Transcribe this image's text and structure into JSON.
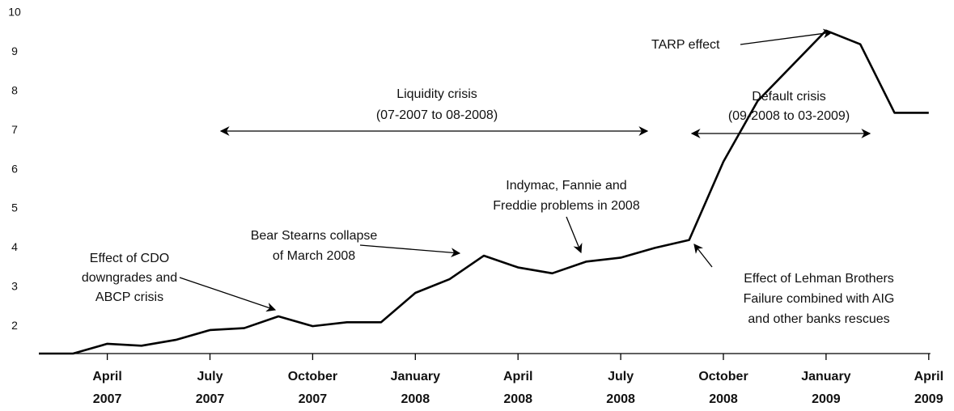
{
  "chart_data": {
    "type": "line",
    "x": [
      "2007-02",
      "2007-03",
      "2007-04",
      "2007-05",
      "2007-06",
      "2007-07",
      "2007-08",
      "2007-09",
      "2007-10",
      "2007-11",
      "2007-12",
      "2008-01",
      "2008-02",
      "2008-03",
      "2008-04",
      "2008-05",
      "2008-06",
      "2008-07",
      "2008-08",
      "2008-09",
      "2008-10",
      "2008-11",
      "2008-12",
      "2009-01",
      "2009-02",
      "2009-03",
      "2009-04"
    ],
    "values": [
      1.3,
      1.3,
      1.55,
      1.5,
      1.65,
      1.9,
      1.95,
      2.25,
      2.0,
      2.1,
      2.1,
      2.85,
      3.2,
      3.8,
      3.5,
      3.35,
      3.65,
      3.75,
      4.0,
      4.2,
      6.2,
      7.75,
      8.65,
      9.55,
      9.2,
      7.45,
      7.45
    ],
    "color": "#000000",
    "ylim": [
      1.3,
      10
    ],
    "yticks": [
      2,
      3,
      4,
      5,
      6,
      7,
      8,
      9,
      10
    ],
    "xticks": [
      {
        "value": "2007-04",
        "label": [
          "April",
          "2007"
        ]
      },
      {
        "value": "2007-07",
        "label": [
          "July",
          "2007"
        ]
      },
      {
        "value": "2007-10",
        "label": [
          "October",
          "2007"
        ]
      },
      {
        "value": "2008-01",
        "label": [
          "January",
          "2008"
        ]
      },
      {
        "value": "2008-04",
        "label": [
          "April",
          "2008"
        ]
      },
      {
        "value": "2008-07",
        "label": [
          "July",
          "2008"
        ]
      },
      {
        "value": "2008-10",
        "label": [
          "October",
          "2008"
        ]
      },
      {
        "value": "2009-01",
        "label": [
          "January",
          "2009"
        ]
      },
      {
        "value": "2009-04",
        "label": [
          "April",
          "2009"
        ]
      }
    ],
    "annotations": [
      [
        "Effect of CDO",
        "downgrades and",
        "ABCP crisis"
      ],
      [
        "Bear Stearns collapse",
        "of March 2008"
      ],
      [
        "Liquidity crisis",
        "(07-2007 to 08-2008)"
      ],
      [
        "Indymac, Fannie and",
        "Freddie problems in 2008"
      ],
      [
        "Default crisis",
        "(09-2008 to 03-2009)"
      ],
      [
        "TARP effect"
      ],
      [
        "Effect of Lehman Brothers",
        "Failure  combined with AIG",
        "and other banks rescues"
      ]
    ]
  }
}
